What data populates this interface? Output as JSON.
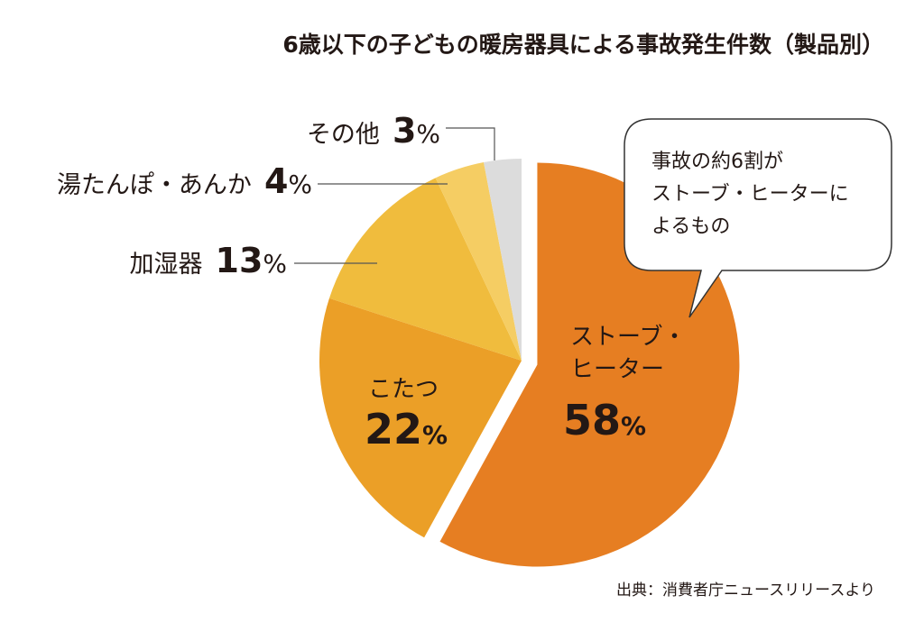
{
  "chart_data": {
    "type": "pie",
    "title": "6歳以下の子どもの暖房器具による事故発生件数（製品別）",
    "slices": [
      {
        "label": "ストーブ・ヒーター",
        "label_lines": [
          "ストーブ・",
          "ヒーター"
        ],
        "value": 58,
        "color": "#e67e22",
        "exploded": true
      },
      {
        "label": "こたつ",
        "label_lines": [
          "こたつ"
        ],
        "value": 22,
        "color": "#eb9f27"
      },
      {
        "label": "加湿器",
        "label_lines": [
          "加湿器"
        ],
        "value": 13,
        "color": "#f0bc3d"
      },
      {
        "label": "湯たんぽ・あんか",
        "label_lines": [
          "湯たんぽ・あんか"
        ],
        "value": 4,
        "color": "#f5cd63"
      },
      {
        "label": "その他",
        "label_lines": [
          "その他"
        ],
        "value": 3,
        "color": "#dcdcdc"
      }
    ],
    "percent_sign": "%",
    "callout": [
      "事故の約6割が",
      "ストーブ・ヒーターに",
      "よるもの"
    ],
    "source": "出典：消費者庁ニュースリリースより"
  }
}
